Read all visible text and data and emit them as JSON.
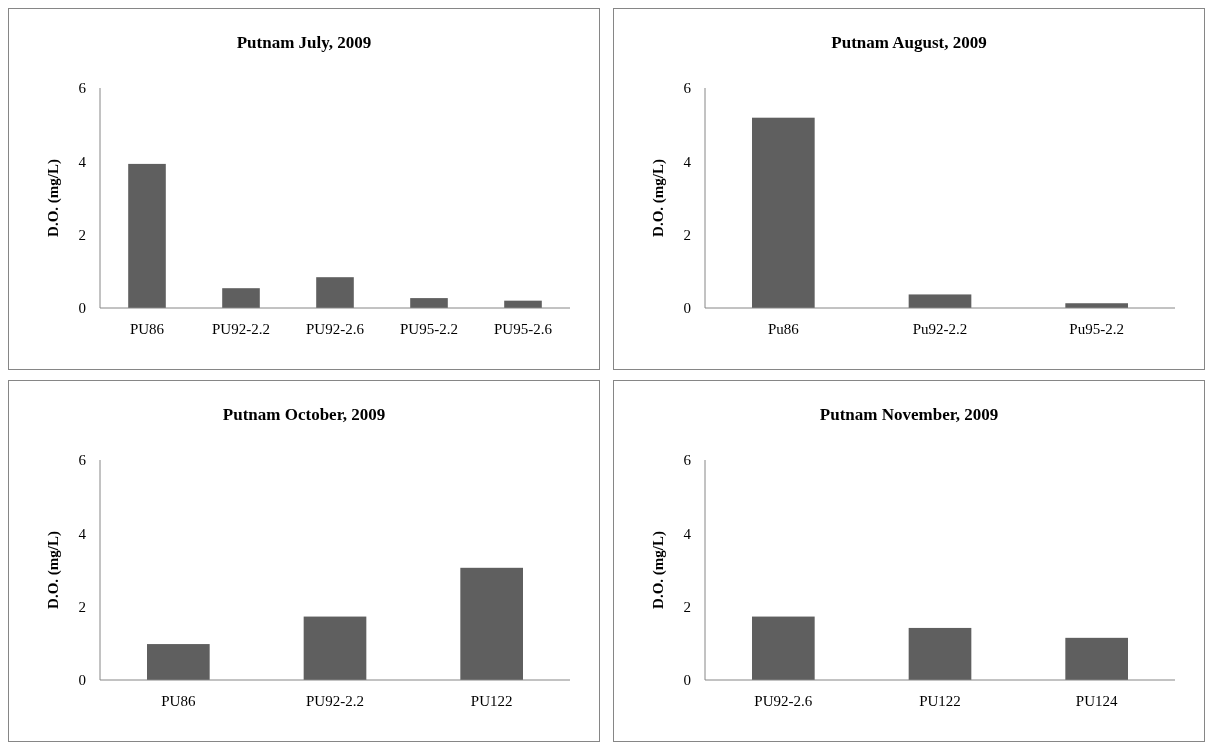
{
  "chart_data": [
    {
      "type": "bar",
      "title": "Putnam  July, 2009",
      "ylabel": "D.O. (mg/L)",
      "categories": [
        "PU86",
        "PU92-2.2",
        "PU92-2.6",
        "PU95-2.2",
        "PU95-2.6"
      ],
      "values": [
        3.93,
        0.54,
        0.84,
        0.27,
        0.2
      ],
      "color": "#5f5f5f",
      "ylim": [
        0,
        6
      ],
      "yticks": [
        0,
        2,
        4,
        6
      ]
    },
    {
      "type": "bar",
      "title": "Putnam  August, 2009",
      "ylabel": "D.O. (mg/L)",
      "categories": [
        "Pu86",
        "Pu92-2.2",
        "Pu95-2.2"
      ],
      "values": [
        5.19,
        0.37,
        0.13
      ],
      "color": "#5f5f5f",
      "ylim": [
        0,
        6
      ],
      "yticks": [
        0,
        2,
        4,
        6
      ]
    },
    {
      "type": "bar",
      "title": "Putnam  October, 2009",
      "ylabel": "D.O. (mg/L)",
      "categories": [
        "PU86",
        "PU92-2.2",
        "PU122"
      ],
      "values": [
        0.98,
        1.73,
        3.06
      ],
      "color": "#5f5f5f",
      "ylim": [
        0,
        6
      ],
      "yticks": [
        0,
        2,
        4,
        6
      ]
    },
    {
      "type": "bar",
      "title": "Putnam  November, 2009",
      "ylabel": "D.O. (mg/L)",
      "categories": [
        "PU92-2.6",
        "PU122",
        "PU124"
      ],
      "values": [
        1.73,
        1.42,
        1.15
      ],
      "color": "#5f5f5f",
      "ylim": [
        0,
        6
      ],
      "yticks": [
        0,
        2,
        4,
        6
      ]
    }
  ]
}
